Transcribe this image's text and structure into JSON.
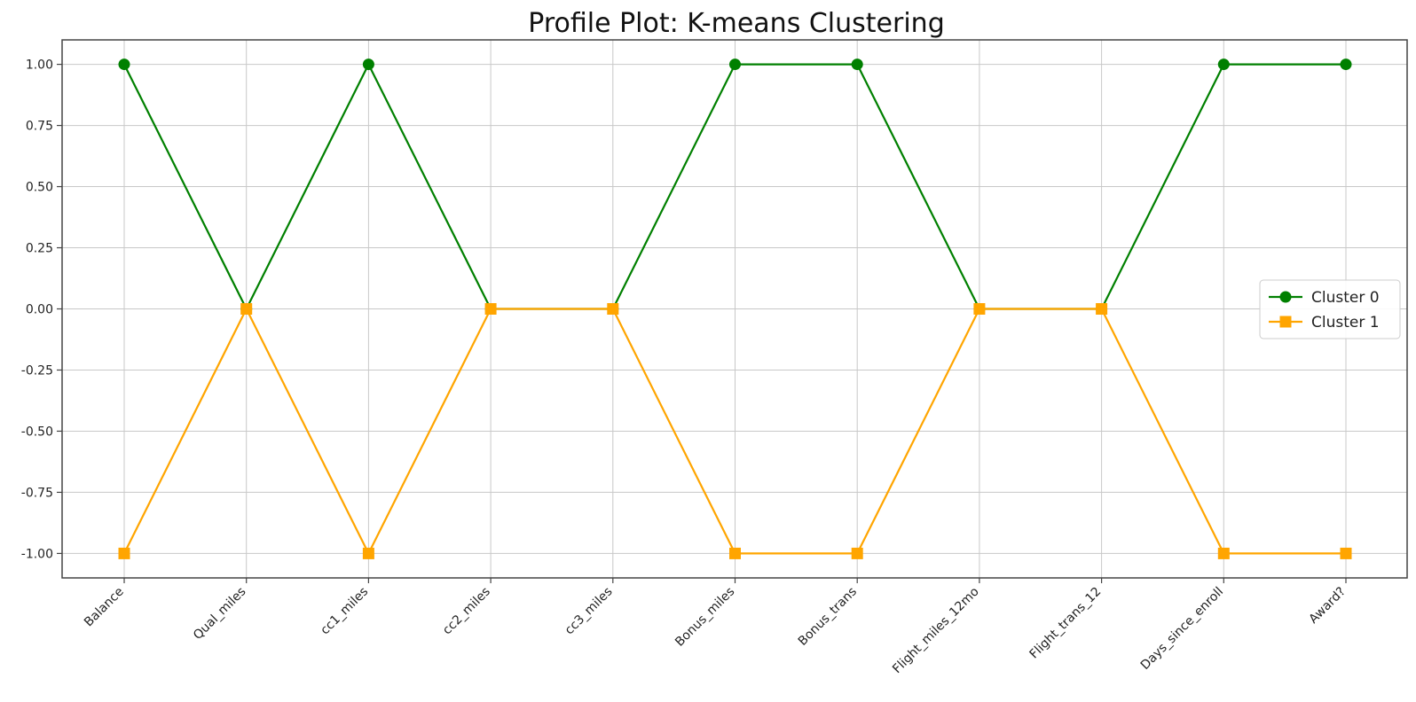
{
  "chart_data": {
    "type": "line",
    "title": "Profile Plot: K-means Clustering",
    "xlabel": "",
    "ylabel": "",
    "categories": [
      "Balance",
      "Qual_miles",
      "cc1_miles",
      "cc2_miles",
      "cc3_miles",
      "Bonus_miles",
      "Bonus_trans",
      "Flight_miles_12mo",
      "Flight_trans_12",
      "Days_since_enroll",
      "Award?"
    ],
    "series": [
      {
        "name": "Cluster 0",
        "values": [
          1,
          0,
          1,
          0,
          0,
          1,
          1,
          0,
          0,
          1,
          1
        ],
        "color": "#008000",
        "marker": "circle"
      },
      {
        "name": "Cluster 1",
        "values": [
          -1,
          0,
          -1,
          0,
          0,
          -1,
          -1,
          0,
          0,
          -1,
          -1
        ],
        "color": "#FFA500",
        "marker": "square"
      }
    ],
    "ylim": [
      -1.1,
      1.1
    ],
    "yticks": [
      1.0,
      0.75,
      0.5,
      0.25,
      0.0,
      -0.25,
      -0.5,
      -0.75,
      -1.0
    ],
    "ytick_labels": [
      "1.00",
      "0.75",
      "0.50",
      "0.25",
      "0.00",
      "-0.25",
      "-0.50",
      "-0.75",
      "-1.00"
    ],
    "grid": true,
    "legend_position": "right"
  }
}
